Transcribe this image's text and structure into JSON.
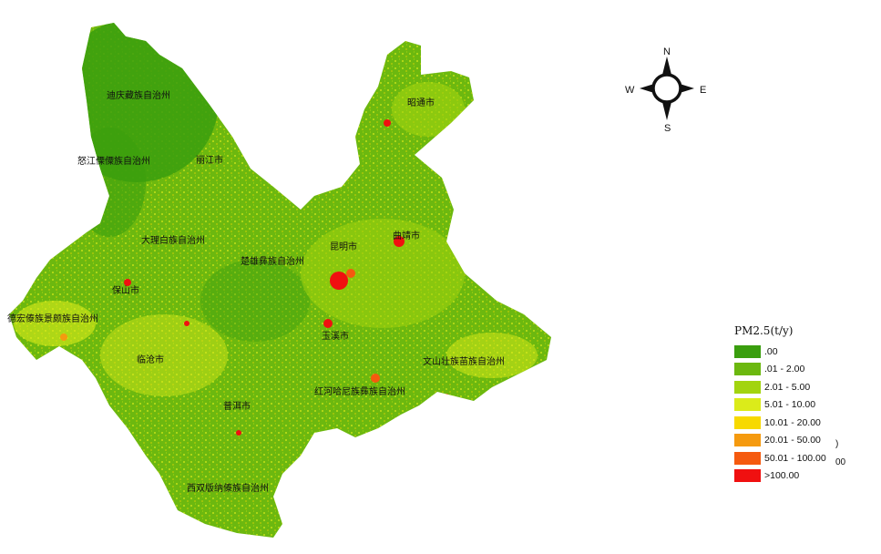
{
  "compass": {
    "n": "N",
    "s": "S",
    "e": "E",
    "w": "W"
  },
  "legend": {
    "title": "PM2.5(t/y)",
    "items": [
      {
        "label": ".00",
        "color": "#3a9e0e"
      },
      {
        "label": ".01 - 2.00",
        "color": "#6cb80f"
      },
      {
        "label": "2.01 - 5.00",
        "color": "#a2d40f"
      },
      {
        "label": "5.01 - 10.00",
        "color": "#dbeb1a"
      },
      {
        "label": "10.01 - 20.00",
        "color": "#f7d900"
      },
      {
        "label": "20.01 - 50.00",
        "color": "#f59a0f"
      },
      {
        "label": "50.01 - 100.00",
        "color": "#f55a0f"
      },
      {
        "label": ">100.00",
        "color": "#f01010"
      }
    ],
    "clipped_fragments": [
      ")",
      "00"
    ]
  },
  "cities": [
    "迪庆藏族自治州",
    "怒江傈僳族自治州",
    "丽江市",
    "昭通市",
    "大理白族自治州",
    "楚雄彝族自治州",
    "昆明市",
    "曲靖市",
    "保山市",
    "德宏傣族景颇族自治州",
    "玉溪市",
    "临沧市",
    "文山壮族苗族自治州",
    "红河哈尼族彝族自治州",
    "普洱市",
    "西双版纳傣族自治州"
  ]
}
